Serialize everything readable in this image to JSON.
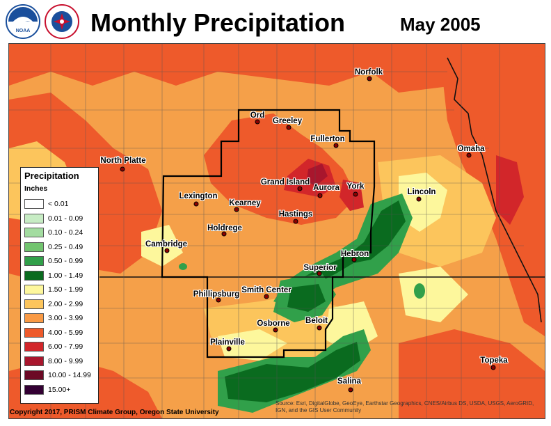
{
  "header": {
    "title": "Monthly Precipitation",
    "date": "May 2005"
  },
  "logos": [
    {
      "name": "NOAA",
      "color": "#1a4f9c"
    },
    {
      "name": "NATIONAL WEATHER SERVICE",
      "color": "#c8102e"
    }
  ],
  "legend": {
    "title": "Precipitation",
    "subtitle": "Inches",
    "classes": [
      {
        "label": "< 0.01",
        "color": "#ffffff"
      },
      {
        "label": "0.01 - 0.09",
        "color": "#c7ecc4"
      },
      {
        "label": "0.10 - 0.24",
        "color": "#a3dca0"
      },
      {
        "label": "0.25 - 0.49",
        "color": "#72c46f"
      },
      {
        "label": "0.50 - 0.99",
        "color": "#31a04a"
      },
      {
        "label": "1.00 - 1.49",
        "color": "#0a6b1f"
      },
      {
        "label": "1.50 - 1.99",
        "color": "#fdf79c"
      },
      {
        "label": "2.00 - 2.99",
        "color": "#fcc55c"
      },
      {
        "label": "3.00 - 3.99",
        "color": "#f99a45"
      },
      {
        "label": "4.00 - 5.99",
        "color": "#ee5a2b"
      },
      {
        "label": "6.00 - 7.99",
        "color": "#d2262a"
      },
      {
        "label": "8.00 - 9.99",
        "color": "#a9162d"
      },
      {
        "label": "10.00 - 14.99",
        "color": "#6c0a25"
      },
      {
        "label": "15.00+",
        "color": "#330033"
      }
    ]
  },
  "cities": [
    {
      "name": "Norfolk",
      "label_at": "dot-below"
    },
    {
      "name": "Ord"
    },
    {
      "name": "Greeley"
    },
    {
      "name": "Fullerton"
    },
    {
      "name": "Omaha"
    },
    {
      "name": "North Platte"
    },
    {
      "name": "Grand Island"
    },
    {
      "name": "Aurora"
    },
    {
      "name": "York"
    },
    {
      "name": "Lincoln"
    },
    {
      "name": "Lexington"
    },
    {
      "name": "Kearney"
    },
    {
      "name": "Hastings"
    },
    {
      "name": "Holdrege"
    },
    {
      "name": "Cambridge"
    },
    {
      "name": "Hebron"
    },
    {
      "name": "Superior"
    },
    {
      "name": "Phillipsburg"
    },
    {
      "name": "Smith Center"
    },
    {
      "name": "Osborne"
    },
    {
      "name": "Beloit"
    },
    {
      "name": "Plainville"
    },
    {
      "name": "Topeka"
    },
    {
      "name": "Salina"
    }
  ],
  "footer": {
    "copyright": "Copyright 2017, PRISM Climate Group, Oregon State University",
    "source": "Source: Esri, DigitalGlobe, GeoEye, Earthstar Geographics, CNES/Airbus DS, USDA, USGS, AeroGRID, IGN, and the GIS User Community"
  }
}
